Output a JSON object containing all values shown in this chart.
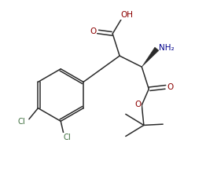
{
  "bg_color": "#ffffff",
  "line_color": "#2a2a2a",
  "atom_colors": {
    "O": "#8b0000",
    "N": "#00008b",
    "Cl": "#3a6b3a",
    "C": "#2a2a2a"
  },
  "figsize": [
    2.62,
    2.19
  ],
  "dpi": 100
}
